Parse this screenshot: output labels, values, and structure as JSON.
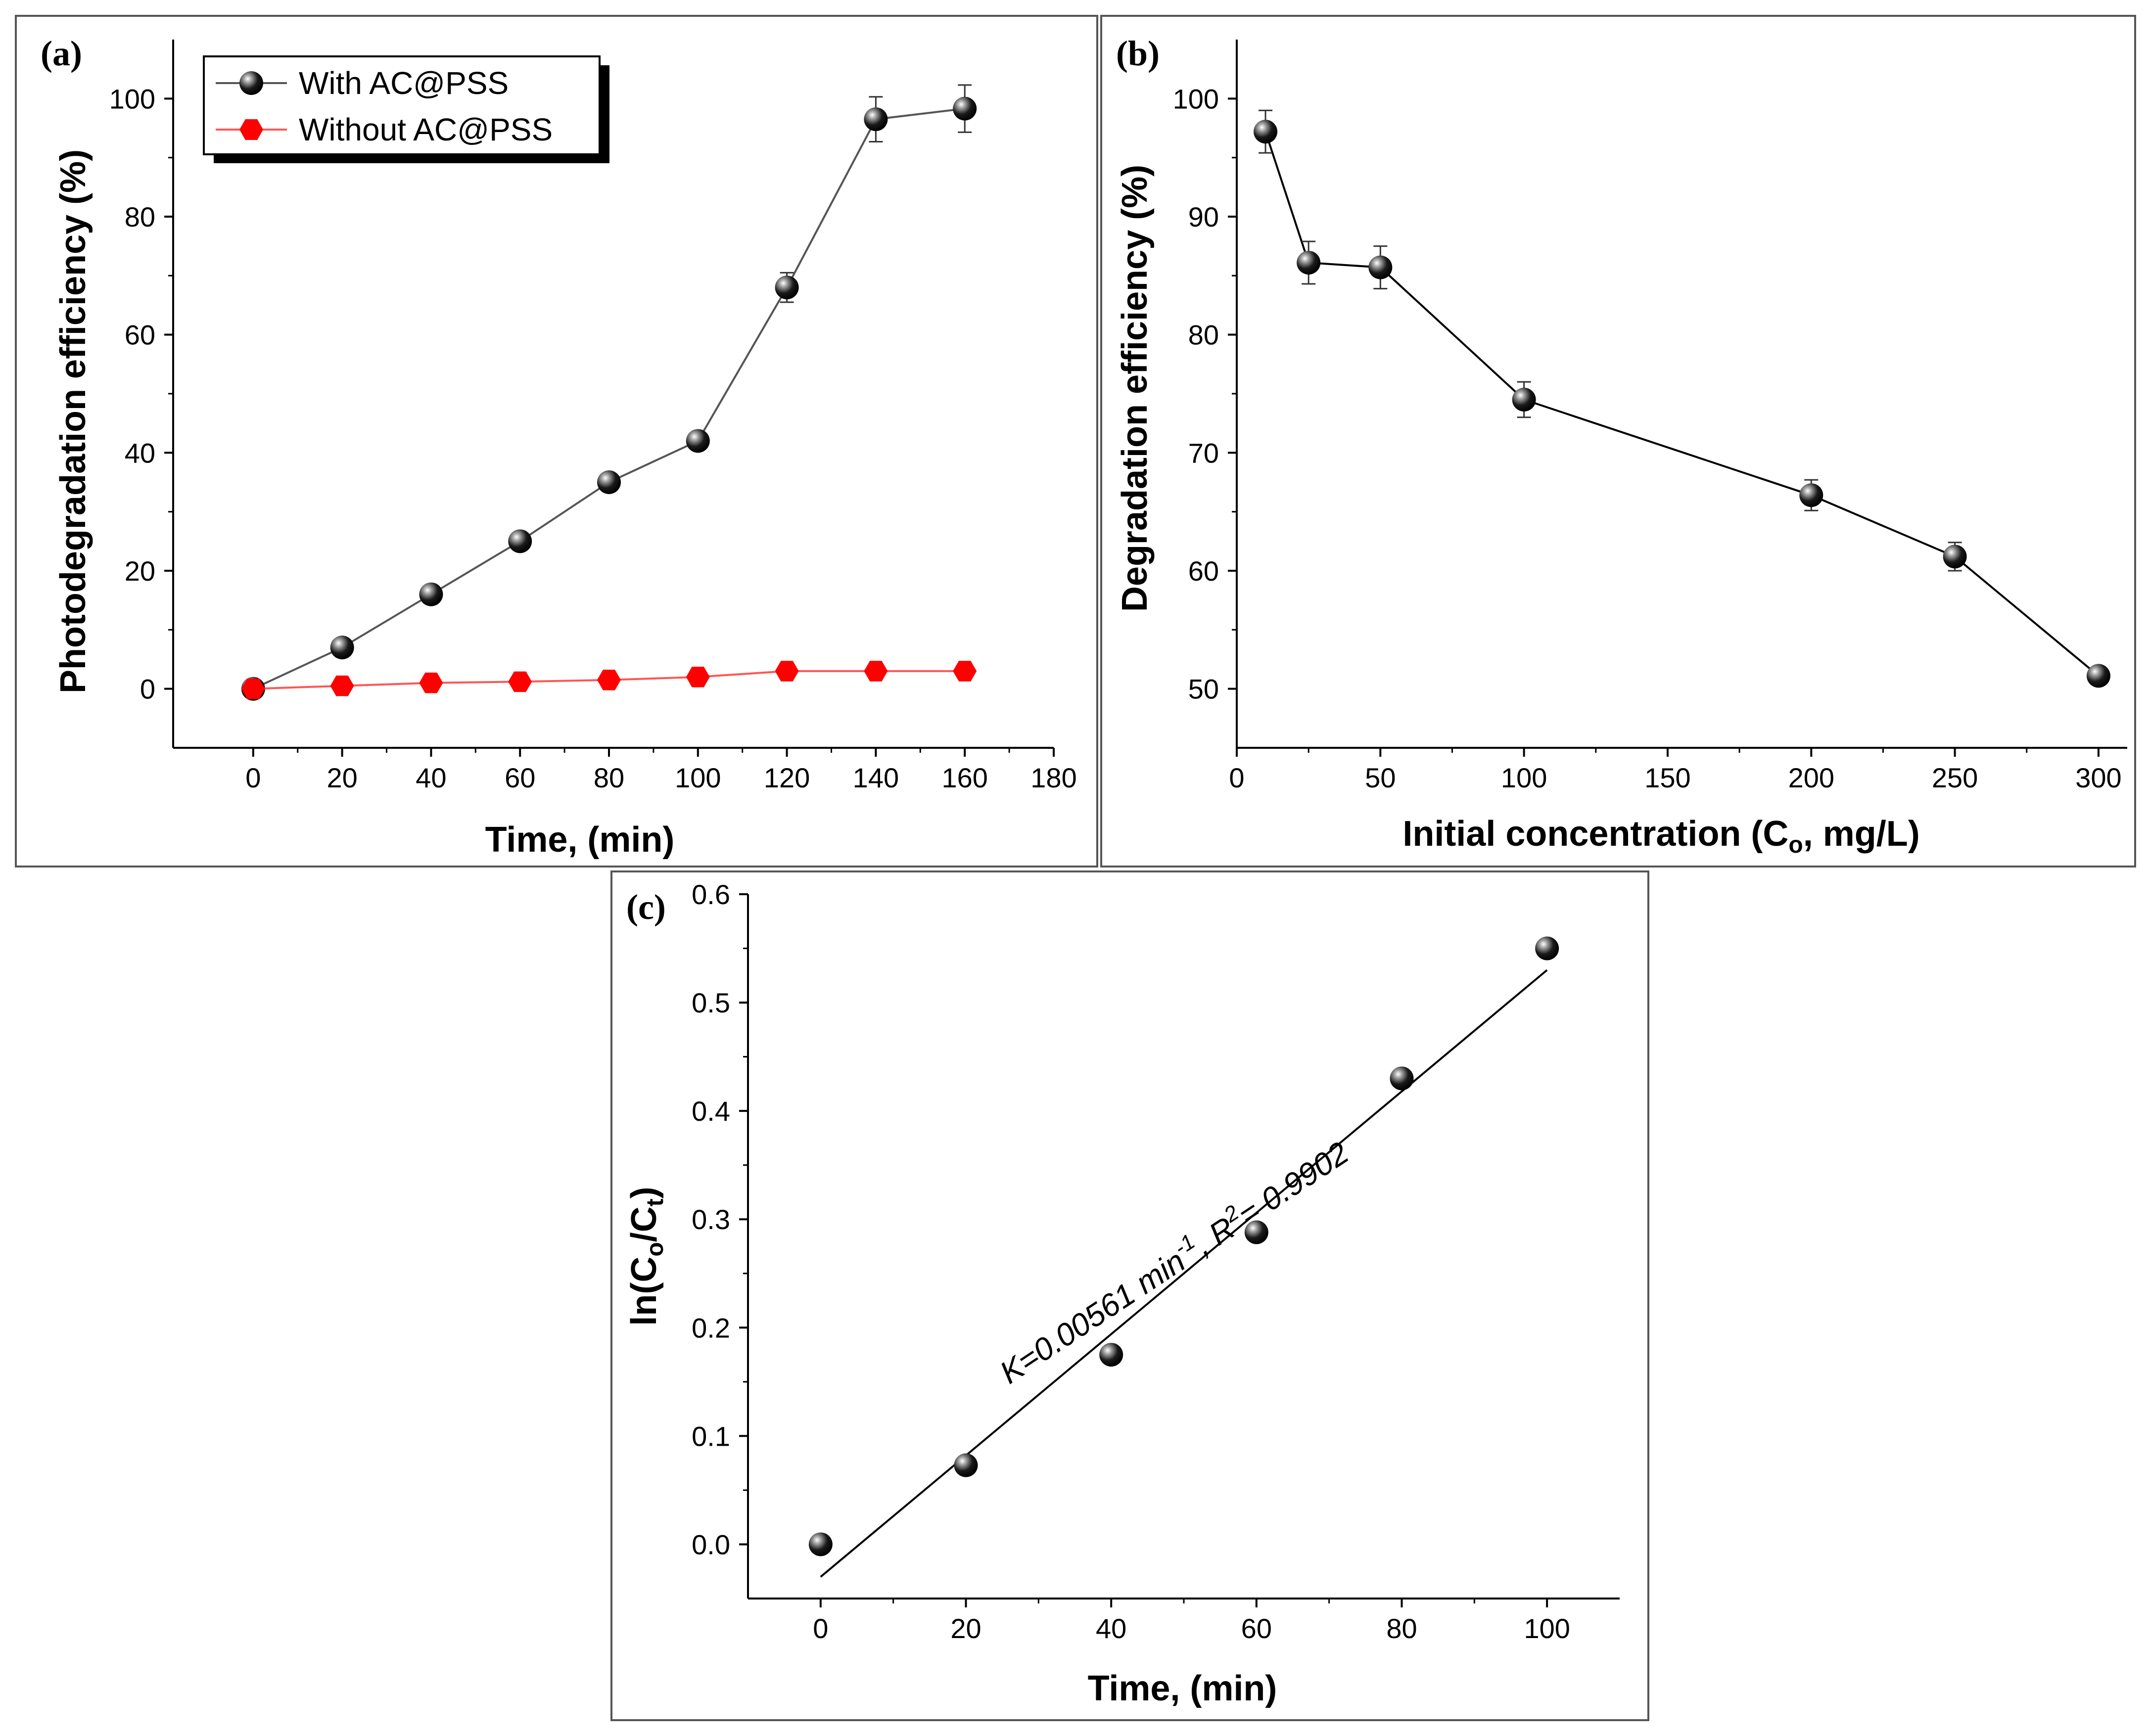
{
  "chart_data": [
    {
      "type": "line",
      "panel_label": "(a)",
      "xlabel": "Time, (min)",
      "ylabel": "Photodegradation efficiency (%)",
      "xlim": [
        -18,
        180
      ],
      "ylim": [
        -10,
        110
      ],
      "xticks": [
        0,
        20,
        40,
        60,
        80,
        100,
        120,
        140,
        160,
        180
      ],
      "yticks": [
        0,
        20,
        40,
        60,
        80,
        100
      ],
      "legend_position": "top-left",
      "series": [
        {
          "name": "With AC@PSS",
          "color": "#000000",
          "line_color": "#555555",
          "marker": "sphere",
          "x": [
            0,
            20,
            40,
            60,
            80,
            100,
            120,
            140,
            160
          ],
          "values": [
            0,
            7,
            16,
            25,
            35,
            42,
            68,
            96.5,
            98.3
          ],
          "errors": [
            0,
            0,
            0,
            0,
            0,
            0,
            2.5,
            3.8,
            4.0
          ]
        },
        {
          "name": "Without AC@PSS",
          "color": "#ff0000",
          "line_color": "#ff5555",
          "marker": "hexagon",
          "x": [
            0,
            20,
            40,
            60,
            80,
            100,
            120,
            140,
            160
          ],
          "values": [
            0,
            0.5,
            1,
            1.2,
            1.5,
            2,
            3,
            3,
            3
          ],
          "errors": [
            0,
            0,
            0,
            0,
            0,
            0,
            0,
            0,
            0
          ]
        }
      ]
    },
    {
      "type": "line",
      "panel_label": "(b)",
      "xlabel": "Initial concentration (C",
      "xlabel_sub": "o",
      "xlabel_tail": ", mg/L)",
      "ylabel": "Degradation efficiency (%)",
      "xlim": [
        0,
        310
      ],
      "ylim": [
        45,
        105
      ],
      "xticks": [
        0,
        50,
        100,
        150,
        200,
        250,
        300
      ],
      "yticks": [
        50,
        60,
        70,
        80,
        90,
        100
      ],
      "series": [
        {
          "name": "Degradation efficiency",
          "color": "#000000",
          "line_color": "#000000",
          "marker": "sphere",
          "x": [
            10,
            25,
            50,
            100,
            200,
            250,
            300
          ],
          "values": [
            97.2,
            86.1,
            85.7,
            74.5,
            66.4,
            61.2,
            51.1
          ],
          "errors": [
            1.8,
            1.8,
            1.8,
            1.5,
            1.3,
            1.2,
            0.5
          ]
        }
      ]
    },
    {
      "type": "scatter",
      "panel_label": "(c)",
      "xlabel": "Time, (min)",
      "ylabel_parts": [
        "ln(C",
        "o",
        "/C",
        "t",
        ")"
      ],
      "xlim": [
        -10,
        110
      ],
      "ylim": [
        -0.05,
        0.6
      ],
      "xticks": [
        0,
        20,
        40,
        60,
        80,
        100
      ],
      "yticks": [
        0.0,
        0.1,
        0.2,
        0.3,
        0.4,
        0.5,
        0.6
      ],
      "ytick_labels": [
        "0.0",
        "0.1",
        "0.2",
        "0.3",
        "0.4",
        "0.5",
        "0.6"
      ],
      "series": [
        {
          "name": "ln(Co/Ct)",
          "color": "#000000",
          "marker": "sphere",
          "x": [
            0,
            20,
            40,
            60,
            80,
            100
          ],
          "values": [
            0.0,
            0.073,
            0.175,
            0.288,
            0.43,
            0.55
          ]
        }
      ],
      "fit_line": {
        "x": [
          0,
          100
        ],
        "values": [
          -0.03,
          0.53
        ]
      },
      "annotation": {
        "prefix": "K=0.00561 min",
        "sup1": "-1",
        "middle": ", R",
        "sup2": "2",
        "suffix": "= 0.9902"
      }
    }
  ]
}
